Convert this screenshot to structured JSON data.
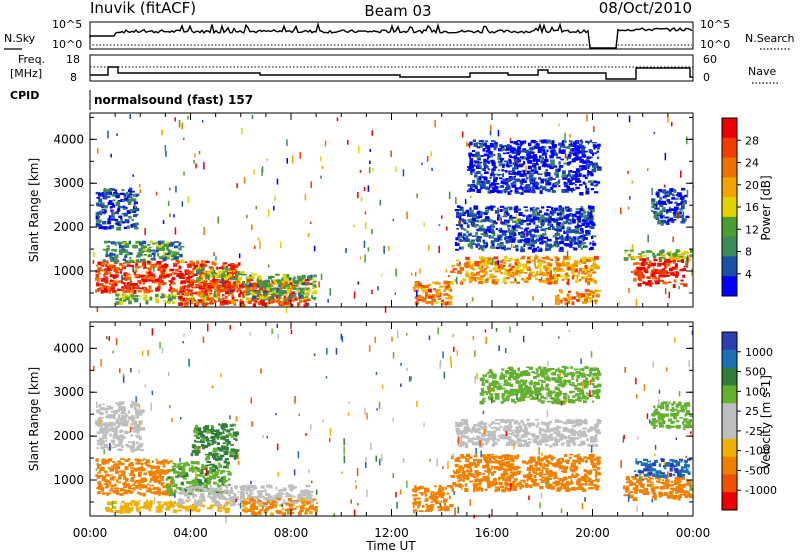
{
  "header": {
    "station": "Inuvik (fitACF)",
    "beam": "Beam 03",
    "date": "08/Oct/2010"
  },
  "strip_labels": {
    "nsky": "N.Sky",
    "nsearch": "N.Search",
    "freq_line1": "Freq.",
    "freq_line2": "[MHz]",
    "nave": "Nave",
    "cpid": "CPID",
    "cpid_text": "normalsound (fast) 157",
    "noise_ticks_left": [
      "10^5",
      "10^0"
    ],
    "noise_ticks_right": [
      "10^5",
      "10^0"
    ],
    "freq_ticks": [
      "18",
      "8"
    ],
    "nave_ticks": [
      "60",
      "0"
    ]
  },
  "colors": {
    "power_scale": [
      "#0000ff",
      "#1e4fa6",
      "#3d8b58",
      "#4c9c34",
      "#dfd400",
      "#f2a400",
      "#f27000",
      "#f23c00",
      "#ee0000"
    ],
    "velocity_scale": [
      "#2c3fb0",
      "#1a6fb5",
      "#2f7f3a",
      "#64b030",
      "#bebebe",
      "#bebebe",
      "#f0b000",
      "#f08000",
      "#ee5000",
      "#ee0000"
    ]
  },
  "chart_data": [
    {
      "type": "heatmap",
      "name": "power",
      "ylabel": "Slant Range [km]",
      "ylim": [
        180,
        4600
      ],
      "yticks": [
        1000,
        2000,
        3000,
        4000
      ],
      "colorbar": {
        "title": "Power [dB]",
        "ticks": [
          "28",
          "24",
          "20",
          "16",
          "12",
          "8",
          "4"
        ]
      },
      "regions": [
        {
          "t": [
            0.2,
            5.9
          ],
          "r": [
            550,
            1250
          ],
          "value": 26
        },
        {
          "t": [
            0.5,
            3.6
          ],
          "r": [
            1250,
            1700
          ],
          "value": 10
        },
        {
          "t": [
            0.2,
            1.8
          ],
          "r": [
            2000,
            2900
          ],
          "value": 6
        },
        {
          "t": [
            0.9,
            5.2
          ],
          "r": [
            300,
            500
          ],
          "value": 14
        },
        {
          "t": [
            3.5,
            8.6
          ],
          "r": [
            240,
            820
          ],
          "value": 25
        },
        {
          "t": [
            4.2,
            6.0
          ],
          "r": [
            800,
            1100
          ],
          "value": 14
        },
        {
          "t": [
            6.0,
            8.9
          ],
          "r": [
            350,
            950
          ],
          "value": 12
        },
        {
          "t": [
            12.8,
            14.3
          ],
          "r": [
            280,
            800
          ],
          "value": 22
        },
        {
          "t": [
            14.3,
            20.1
          ],
          "r": [
            750,
            1350
          ],
          "value": 20
        },
        {
          "t": [
            14.5,
            20.0
          ],
          "r": [
            1500,
            2500
          ],
          "value": 6
        },
        {
          "t": [
            15.0,
            20.2
          ],
          "r": [
            2800,
            4000
          ],
          "value": 4
        },
        {
          "t": [
            21.6,
            23.7
          ],
          "r": [
            700,
            1300
          ],
          "value": 27
        },
        {
          "t": [
            21.2,
            23.9
          ],
          "r": [
            1300,
            1500
          ],
          "value": 14
        },
        {
          "t": [
            22.3,
            23.7
          ],
          "r": [
            2100,
            2900
          ],
          "value": 6
        },
        {
          "t": [
            18.5,
            20.2
          ],
          "r": [
            300,
            600
          ],
          "value": 22
        }
      ]
    },
    {
      "type": "heatmap",
      "name": "velocity",
      "xlabel": "Time UT",
      "ylabel": "Slant Range [km]",
      "ylim": [
        180,
        4600
      ],
      "yticks": [
        1000,
        2000,
        3000,
        4000
      ],
      "xticks": [
        "00:00",
        "04:00",
        "08:00",
        "12:00",
        "16:00",
        "20:00",
        "00:00"
      ],
      "colorbar": {
        "title": "Velocity [m s-1]",
        "ticks": [
          "1000",
          "500",
          "100",
          "25",
          "-25",
          "-100",
          "-500",
          "-1000"
        ]
      },
      "regions": [
        {
          "t": [
            0.2,
            3.2
          ],
          "r": [
            700,
            1500
          ],
          "value": -200
        },
        {
          "t": [
            3.0,
            5.5
          ],
          "r": [
            700,
            1450
          ],
          "value": 80
        },
        {
          "t": [
            0.2,
            2.0
          ],
          "r": [
            1700,
            2800
          ],
          "value": 0
        },
        {
          "t": [
            0.5,
            5.5
          ],
          "r": [
            300,
            550
          ],
          "value": -60
        },
        {
          "t": [
            3.5,
            8.8
          ],
          "r": [
            450,
            900
          ],
          "value": 0
        },
        {
          "t": [
            4.0,
            5.8
          ],
          "r": [
            1500,
            2300
          ],
          "value": 150
        },
        {
          "t": [
            6.0,
            9.0
          ],
          "r": [
            260,
            600
          ],
          "value": -150
        },
        {
          "t": [
            12.8,
            14.4
          ],
          "r": [
            300,
            900
          ],
          "value": -200
        },
        {
          "t": [
            14.3,
            20.2
          ],
          "r": [
            800,
            1600
          ],
          "value": -300
        },
        {
          "t": [
            14.5,
            20.2
          ],
          "r": [
            1800,
            2400
          ],
          "value": 0
        },
        {
          "t": [
            15.5,
            20.2
          ],
          "r": [
            2800,
            3600
          ],
          "value": 60
        },
        {
          "t": [
            21.2,
            23.9
          ],
          "r": [
            600,
            1100
          ],
          "value": -200
        },
        {
          "t": [
            21.6,
            23.9
          ],
          "r": [
            1100,
            1500
          ],
          "value": 600
        },
        {
          "t": [
            22.3,
            23.9
          ],
          "r": [
            2200,
            2800
          ],
          "value": 60
        }
      ]
    }
  ]
}
